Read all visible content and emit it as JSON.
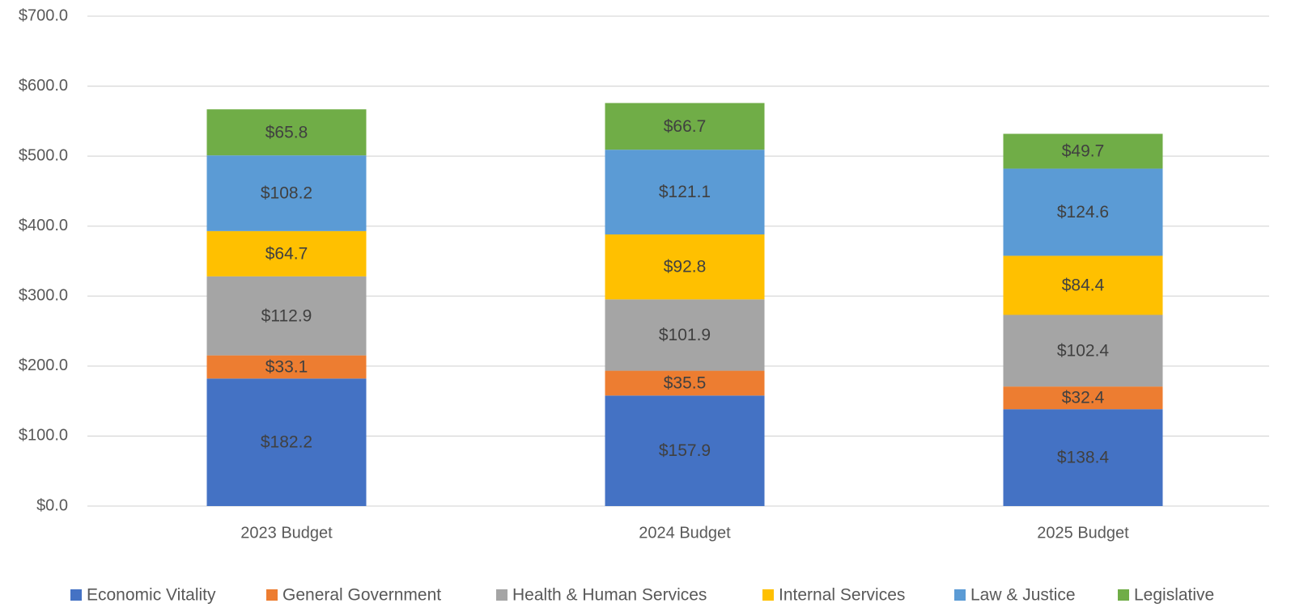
{
  "chart_data": {
    "type": "stacked_bar",
    "categories": [
      "2023 Budget",
      "2024 Budget",
      "2025 Budget"
    ],
    "series": [
      {
        "name": "Economic Vitality",
        "color": "#4472c4",
        "values": [
          182.2,
          157.9,
          138.4
        ],
        "value_labels": [
          "$182.2",
          "$157.9",
          "$138.4"
        ]
      },
      {
        "name": "General Government",
        "color": "#ed7d31",
        "values": [
          33.1,
          35.5,
          32.4
        ],
        "value_labels": [
          "$33.1",
          "$35.5",
          "$32.4"
        ]
      },
      {
        "name": "Health & Human Services",
        "color": "#a5a5a5",
        "values": [
          112.9,
          101.9,
          102.4
        ],
        "value_labels": [
          "$112.9",
          "$101.9",
          "$102.4"
        ]
      },
      {
        "name": "Internal Services",
        "color": "#ffc000",
        "values": [
          64.7,
          92.8,
          84.4
        ],
        "value_labels": [
          "$64.7",
          "$92.8",
          "$84.4"
        ]
      },
      {
        "name": "Law & Justice",
        "color": "#5b9bd5",
        "values": [
          108.2,
          121.1,
          124.6
        ],
        "value_labels": [
          "$108.2",
          "$121.1",
          "$124.6"
        ]
      },
      {
        "name": "Legislative",
        "color": "#70ad47",
        "values": [
          65.8,
          66.7,
          49.7
        ],
        "value_labels": [
          "$65.8",
          "$66.7",
          "$49.7"
        ]
      }
    ],
    "ylim": [
      0,
      700
    ],
    "yticks": [
      {
        "value": 0,
        "label": "$0.0"
      },
      {
        "value": 100,
        "label": "$100.0"
      },
      {
        "value": 200,
        "label": "$200.0"
      },
      {
        "value": 300,
        "label": "$300.0"
      },
      {
        "value": 400,
        "label": "$400.0"
      },
      {
        "value": 500,
        "label": "$500.0"
      },
      {
        "value": 600,
        "label": "$600.0"
      },
      {
        "value": 700,
        "label": "$700.0"
      }
    ],
    "grid": true,
    "legend": "bottom"
  }
}
